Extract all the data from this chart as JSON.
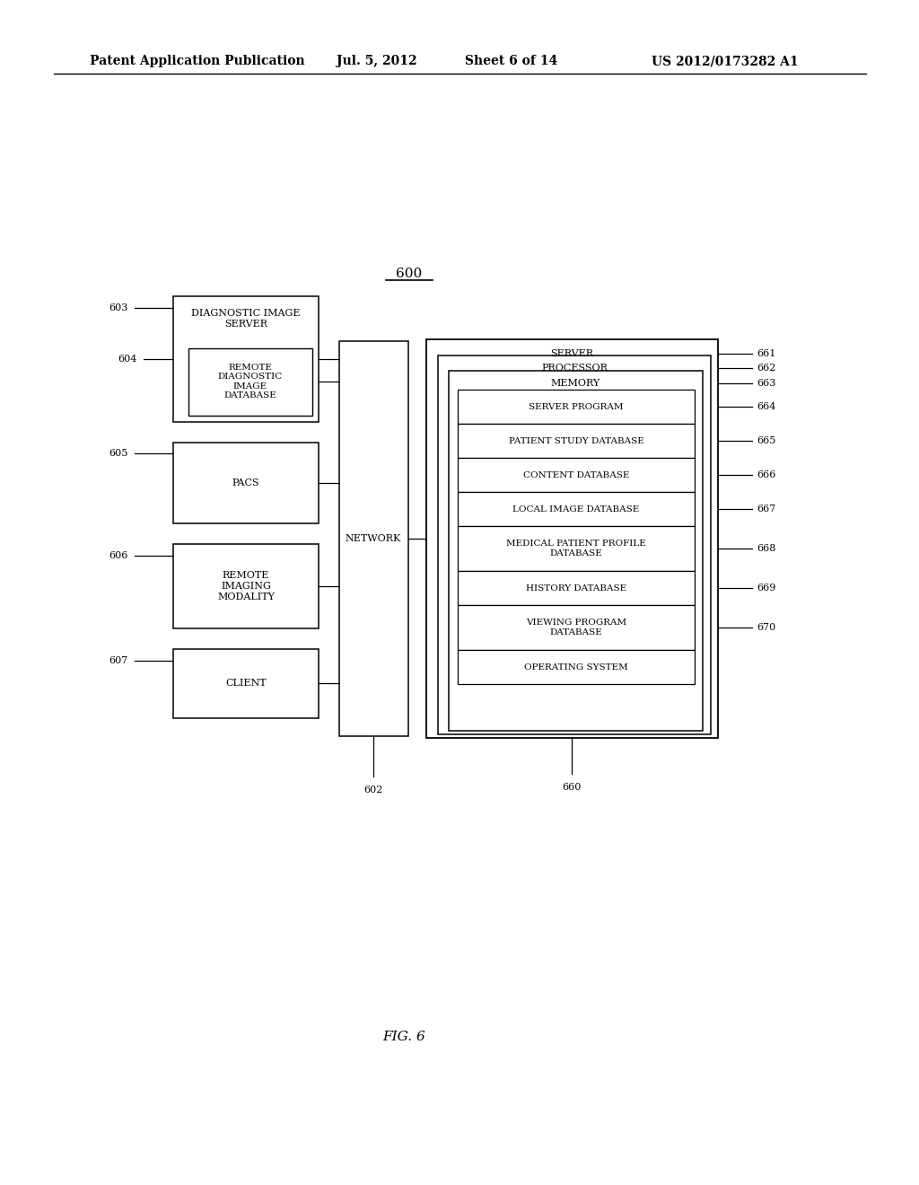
{
  "bg_color": "#ffffff",
  "header_line1": "Patent Application Publication",
  "header_date": "Jul. 5, 2012",
  "header_sheet": "Sheet 6 of 14",
  "header_patent": "US 2012/0173282 A1",
  "figure_label": "FIG. 6",
  "diagram_label": "600"
}
